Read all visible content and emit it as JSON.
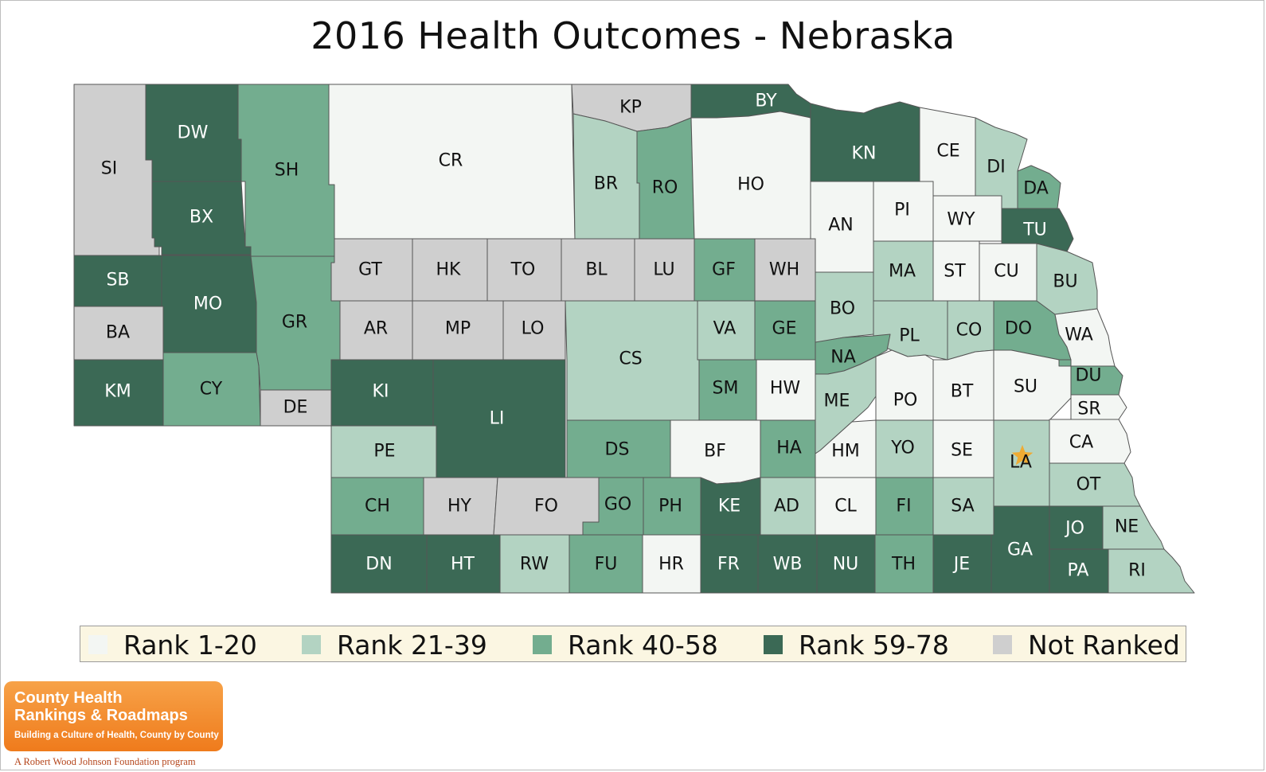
{
  "title": "2016 Health Outcomes - Nebraska",
  "colors": {
    "rank_1_20": "#f3f6f3",
    "rank_21_39": "#b3d3c2",
    "rank_40_58": "#73ad8f",
    "rank_59_78": "#3b6955",
    "not_ranked": "#cfcfcf",
    "border": "#555555",
    "star": "#f5a623"
  },
  "legend": [
    {
      "label": "Rank 1-20",
      "group": "rank_1_20"
    },
    {
      "label": "Rank 21-39",
      "group": "rank_21_39"
    },
    {
      "label": "Rank 40-58",
      "group": "rank_40_58"
    },
    {
      "label": "Rank 59-78",
      "group": "rank_59_78"
    },
    {
      "label": "Not Ranked",
      "group": "not_ranked"
    }
  ],
  "counties": [
    {
      "abbr": "SI",
      "group": "not_ranked"
    },
    {
      "abbr": "DW",
      "group": "rank_59_78"
    },
    {
      "abbr": "SH",
      "group": "rank_40_58"
    },
    {
      "abbr": "CR",
      "group": "rank_1_20"
    },
    {
      "abbr": "KP",
      "group": "not_ranked"
    },
    {
      "abbr": "BY",
      "group": "rank_59_78"
    },
    {
      "abbr": "BR",
      "group": "rank_21_39"
    },
    {
      "abbr": "RO",
      "group": "rank_40_58"
    },
    {
      "abbr": "HO",
      "group": "rank_1_20"
    },
    {
      "abbr": "KN",
      "group": "rank_59_78"
    },
    {
      "abbr": "CE",
      "group": "rank_1_20"
    },
    {
      "abbr": "DI",
      "group": "rank_21_39"
    },
    {
      "abbr": "DA",
      "group": "rank_40_58"
    },
    {
      "abbr": "BX",
      "group": "rank_59_78"
    },
    {
      "abbr": "AN",
      "group": "rank_1_20"
    },
    {
      "abbr": "PI",
      "group": "rank_1_20"
    },
    {
      "abbr": "WY",
      "group": "rank_1_20"
    },
    {
      "abbr": "TU",
      "group": "rank_59_78"
    },
    {
      "abbr": "SB",
      "group": "rank_59_78"
    },
    {
      "abbr": "MO",
      "group": "rank_59_78"
    },
    {
      "abbr": "GR",
      "group": "rank_40_58"
    },
    {
      "abbr": "GT",
      "group": "not_ranked"
    },
    {
      "abbr": "HK",
      "group": "not_ranked"
    },
    {
      "abbr": "TO",
      "group": "not_ranked"
    },
    {
      "abbr": "BL",
      "group": "not_ranked"
    },
    {
      "abbr": "LU",
      "group": "not_ranked"
    },
    {
      "abbr": "GF",
      "group": "rank_40_58"
    },
    {
      "abbr": "WH",
      "group": "not_ranked"
    },
    {
      "abbr": "MA",
      "group": "rank_21_39"
    },
    {
      "abbr": "ST",
      "group": "rank_1_20"
    },
    {
      "abbr": "CU",
      "group": "rank_1_20"
    },
    {
      "abbr": "BU",
      "group": "rank_21_39"
    },
    {
      "abbr": "BA",
      "group": "not_ranked"
    },
    {
      "abbr": "AR",
      "group": "not_ranked"
    },
    {
      "abbr": "MP",
      "group": "not_ranked"
    },
    {
      "abbr": "LO",
      "group": "not_ranked"
    },
    {
      "abbr": "CS",
      "group": "rank_21_39"
    },
    {
      "abbr": "VA",
      "group": "rank_21_39"
    },
    {
      "abbr": "GE",
      "group": "rank_40_58"
    },
    {
      "abbr": "BO",
      "group": "rank_21_39"
    },
    {
      "abbr": "PL",
      "group": "rank_21_39"
    },
    {
      "abbr": "CO",
      "group": "rank_21_39"
    },
    {
      "abbr": "DO",
      "group": "rank_40_58"
    },
    {
      "abbr": "WA",
      "group": "rank_1_20"
    },
    {
      "abbr": "NA",
      "group": "rank_40_58"
    },
    {
      "abbr": "KM",
      "group": "rank_59_78"
    },
    {
      "abbr": "CY",
      "group": "rank_40_58"
    },
    {
      "abbr": "KI",
      "group": "rank_59_78"
    },
    {
      "abbr": "LI",
      "group": "rank_59_78"
    },
    {
      "abbr": "SM",
      "group": "rank_40_58"
    },
    {
      "abbr": "HW",
      "group": "rank_1_20"
    },
    {
      "abbr": "ME",
      "group": "rank_21_39"
    },
    {
      "abbr": "PO",
      "group": "rank_1_20"
    },
    {
      "abbr": "BT",
      "group": "rank_1_20"
    },
    {
      "abbr": "SU",
      "group": "rank_1_20"
    },
    {
      "abbr": "DU",
      "group": "rank_40_58"
    },
    {
      "abbr": "DE",
      "group": "not_ranked"
    },
    {
      "abbr": "SR",
      "group": "rank_1_20"
    },
    {
      "abbr": "PE",
      "group": "rank_21_39"
    },
    {
      "abbr": "DS",
      "group": "rank_40_58"
    },
    {
      "abbr": "BF",
      "group": "rank_1_20"
    },
    {
      "abbr": "HA",
      "group": "rank_40_58"
    },
    {
      "abbr": "HM",
      "group": "rank_1_20"
    },
    {
      "abbr": "YO",
      "group": "rank_21_39"
    },
    {
      "abbr": "SE",
      "group": "rank_1_20"
    },
    {
      "abbr": "LA",
      "group": "rank_21_39"
    },
    {
      "abbr": "CA",
      "group": "rank_1_20"
    },
    {
      "abbr": "OT",
      "group": "rank_21_39"
    },
    {
      "abbr": "CH",
      "group": "rank_40_58"
    },
    {
      "abbr": "HY",
      "group": "not_ranked"
    },
    {
      "abbr": "FO",
      "group": "not_ranked"
    },
    {
      "abbr": "GO",
      "group": "rank_40_58"
    },
    {
      "abbr": "PH",
      "group": "rank_40_58"
    },
    {
      "abbr": "KE",
      "group": "rank_59_78"
    },
    {
      "abbr": "AD",
      "group": "rank_21_39"
    },
    {
      "abbr": "CL",
      "group": "rank_1_20"
    },
    {
      "abbr": "FI",
      "group": "rank_40_58"
    },
    {
      "abbr": "SA",
      "group": "rank_21_39"
    },
    {
      "abbr": "JO",
      "group": "rank_59_78"
    },
    {
      "abbr": "NE",
      "group": "rank_21_39"
    },
    {
      "abbr": "GA",
      "group": "rank_59_78"
    },
    {
      "abbr": "DN",
      "group": "rank_59_78"
    },
    {
      "abbr": "HT",
      "group": "rank_59_78"
    },
    {
      "abbr": "RW",
      "group": "rank_21_39"
    },
    {
      "abbr": "FU",
      "group": "rank_40_58"
    },
    {
      "abbr": "HR",
      "group": "rank_1_20"
    },
    {
      "abbr": "FR",
      "group": "rank_59_78"
    },
    {
      "abbr": "WB",
      "group": "rank_59_78"
    },
    {
      "abbr": "NU",
      "group": "rank_59_78"
    },
    {
      "abbr": "TH",
      "group": "rank_40_58"
    },
    {
      "abbr": "JE",
      "group": "rank_59_78"
    },
    {
      "abbr": "PA",
      "group": "rank_59_78"
    },
    {
      "abbr": "RI",
      "group": "rank_21_39"
    }
  ],
  "capital_marker": {
    "county": "LA",
    "icon": "star-icon"
  },
  "logo": {
    "line1": "County Health",
    "line2": "Rankings & Roadmaps",
    "tagline": "Building a Culture of Health, County by County",
    "foundation": "A Robert Wood Johnson Foundation program"
  }
}
